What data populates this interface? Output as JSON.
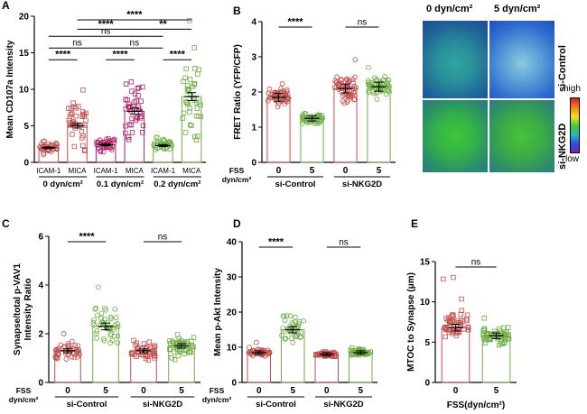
{
  "figure": {
    "panels": [
      "A",
      "B",
      "C",
      "D",
      "E"
    ]
  },
  "chart_data": [
    {
      "panel": "A",
      "type": "bar",
      "ylabel": "Mean CD107a Intensity",
      "ylim": [
        0,
        20
      ],
      "yticks": [
        "0",
        "5",
        "10",
        "15",
        "20"
      ],
      "categories": [
        "ICAM-1",
        "MICA",
        "ICAM-1",
        "MICA",
        "ICAM-1",
        "MICA"
      ],
      "groups": [
        "0 dyn/cm²",
        "0.1 dyn/cm²",
        "0.2 dyn/cm²"
      ],
      "values": [
        2.0,
        5.0,
        2.4,
        7.0,
        2.3,
        9.0
      ],
      "colors": [
        "#c0504d",
        "#c0504d",
        "#b0206a",
        "#b0206a",
        "#70ad47",
        "#70ad47"
      ],
      "markers": [
        "circle",
        "square",
        "circle",
        "square",
        "circle",
        "square"
      ],
      "significance": [
        {
          "a": 0,
          "b": 1,
          "label": "****"
        },
        {
          "a": 2,
          "b": 3,
          "label": "****"
        },
        {
          "a": 4,
          "b": 5,
          "label": "****"
        },
        {
          "a": 0,
          "b": 2,
          "label": "ns"
        },
        {
          "a": 2,
          "b": 4,
          "label": "ns"
        },
        {
          "a": 0,
          "b": 4,
          "label": "ns"
        },
        {
          "a": 1,
          "b": 3,
          "label": "****"
        },
        {
          "a": 3,
          "b": 5,
          "label": "**"
        },
        {
          "a": 1,
          "b": 5,
          "label": "****"
        }
      ]
    },
    {
      "panel": "B",
      "type": "bar",
      "ylabel": "FRET Ratio (YFP/CFP)",
      "ylim": [
        0,
        4
      ],
      "yticks": [
        "0",
        "1",
        "2",
        "3",
        "4"
      ],
      "xlabel_prefix": [
        "FSS",
        "dyn/cm²"
      ],
      "categories": [
        "0",
        "5",
        "0",
        "5"
      ],
      "groups": [
        "si-Control",
        "si-NKG2D"
      ],
      "values": [
        1.85,
        1.25,
        2.1,
        2.15
      ],
      "colors": [
        "#c0504d",
        "#70ad47",
        "#c0504d",
        "#70ad47"
      ],
      "markers": [
        "circle",
        "circle",
        "circle",
        "circle"
      ],
      "significance": [
        {
          "a": 0,
          "b": 1,
          "label": "****"
        },
        {
          "a": 2,
          "b": 3,
          "label": "ns"
        }
      ]
    },
    {
      "panel": "C",
      "type": "bar",
      "ylabel": "Synapse/total p-VAV1 Intensity Ratio",
      "ylabel_lines": [
        "Synapse/total p-VAV1",
        "Intensity Ratio"
      ],
      "ylim": [
        0,
        6
      ],
      "yticks": [
        "0",
        "2",
        "4",
        "6"
      ],
      "xlabel_prefix": [
        "FSS",
        "dyn/cm²"
      ],
      "categories": [
        "0",
        "5",
        "0",
        "5"
      ],
      "groups": [
        "si-Control",
        "si-NKG2D"
      ],
      "values": [
        1.3,
        2.3,
        1.3,
        1.5
      ],
      "colors": [
        "#c0504d",
        "#70ad47",
        "#c0504d",
        "#70ad47"
      ],
      "markers": [
        "circle",
        "circle",
        "square",
        "square"
      ],
      "significance": [
        {
          "a": 0,
          "b": 1,
          "label": "****"
        },
        {
          "a": 2,
          "b": 3,
          "label": "ns"
        }
      ]
    },
    {
      "panel": "D",
      "type": "bar",
      "ylabel": "Mean p-Akt Intensity",
      "ylim": [
        0,
        40
      ],
      "yticks": [
        "0",
        "10",
        "20",
        "30",
        "40"
      ],
      "xlabel_prefix": [
        "FSS",
        "dyn/cm²"
      ],
      "categories": [
        "0",
        "5",
        "0",
        "5"
      ],
      "groups": [
        "si-Control",
        "si-NKG2D"
      ],
      "values": [
        8.5,
        15.0,
        8.0,
        8.5
      ],
      "colors": [
        "#c0504d",
        "#70ad47",
        "#c0504d",
        "#70ad47"
      ],
      "markers": [
        "circle",
        "circle",
        "square",
        "square"
      ],
      "significance": [
        {
          "a": 0,
          "b": 1,
          "label": "****"
        },
        {
          "a": 2,
          "b": 3,
          "label": "ns"
        }
      ]
    },
    {
      "panel": "E",
      "type": "bar",
      "ylabel": "MTOC to Synapse (μm)",
      "xlabel": "FSS(dyn/cm²)",
      "ylim": [
        0,
        15
      ],
      "yticks": [
        "0",
        "5",
        "10",
        "15"
      ],
      "categories": [
        "0",
        "5"
      ],
      "values": [
        6.8,
        5.8
      ],
      "colors": [
        "#c0504d",
        "#70ad47"
      ],
      "markers": [
        "square",
        "square"
      ],
      "significance": [
        {
          "a": 0,
          "b": 1,
          "label": "ns"
        }
      ]
    }
  ],
  "images": {
    "columns": [
      "0 dyn/cm²",
      "5 dyn/cm²"
    ],
    "rows": [
      "si-Control",
      "si-NKG2D"
    ],
    "scale_high": "high",
    "scale_low": "low"
  }
}
